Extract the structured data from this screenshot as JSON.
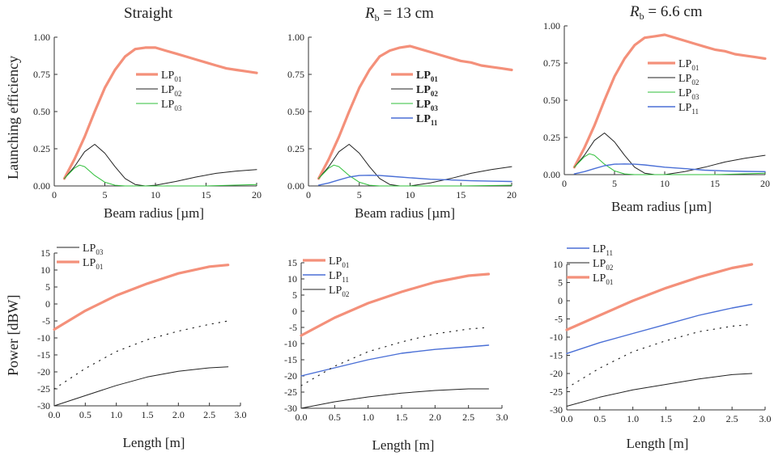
{
  "figure": {
    "ylabel_top": "Launching efficiency",
    "ylabel_bottom": "Power [dBW]",
    "xlabel_top": "Beam radius [µm]",
    "xlabel_bottom": "Length [m]"
  },
  "colors": {
    "lp01": "#f4907a",
    "lp02": "#222222",
    "lp03": "#2fbf3a",
    "lp11": "#4a6fd6",
    "dotted": "#222222"
  },
  "chart_data": [
    {
      "type": "line",
      "title": "Straight",
      "title_var": "",
      "title_sub": "",
      "title_rest": "",
      "xlabel": "Beam radius [µm]",
      "ylabel": "Launching efficiency",
      "xlim": [
        0,
        20
      ],
      "ylim": [
        0,
        1.0
      ],
      "xticks": [
        0,
        5,
        10,
        15,
        20
      ],
      "yticks": [
        "0.00",
        "0.25",
        "0.50",
        "0.75",
        "1.00"
      ],
      "legend": "right",
      "series": [
        {
          "name": "LP",
          "sub": "01",
          "style": "lp01",
          "x": [
            1,
            2,
            3,
            4,
            5,
            6,
            7,
            8,
            9,
            10,
            11,
            12,
            13,
            14,
            15,
            16,
            17,
            18,
            19,
            20
          ],
          "y": [
            0.05,
            0.18,
            0.33,
            0.5,
            0.66,
            0.78,
            0.87,
            0.92,
            0.93,
            0.93,
            0.91,
            0.89,
            0.87,
            0.85,
            0.83,
            0.81,
            0.79,
            0.78,
            0.77,
            0.76
          ]
        },
        {
          "name": "LP",
          "sub": "02",
          "style": "lp02",
          "x": [
            1,
            2,
            3,
            4,
            5,
            6,
            7,
            8,
            9,
            10,
            12,
            14,
            16,
            18,
            20
          ],
          "y": [
            0.05,
            0.13,
            0.23,
            0.28,
            0.22,
            0.13,
            0.05,
            0.01,
            0.0,
            0.005,
            0.03,
            0.06,
            0.085,
            0.1,
            0.11
          ]
        },
        {
          "name": "LP",
          "sub": "03",
          "style": "lp03",
          "x": [
            1,
            2,
            2.5,
            3,
            4,
            5,
            6,
            7,
            10,
            15,
            20
          ],
          "y": [
            0.05,
            0.12,
            0.14,
            0.13,
            0.07,
            0.025,
            0.005,
            0.0,
            0.0,
            0.0,
            0.01
          ]
        }
      ]
    },
    {
      "type": "line",
      "title": "",
      "title_var": "R",
      "title_sub": "b",
      "title_rest": " = 13 cm",
      "xlabel": "Beam radius [µm]",
      "ylabel": "Launching efficiency",
      "xlim": [
        0,
        20
      ],
      "ylim": [
        0,
        1.0
      ],
      "xticks": [
        0,
        5,
        10,
        15,
        20
      ],
      "yticks": [
        "0.00",
        "0.25",
        "0.50",
        "0.75",
        "1.00"
      ],
      "legend": "right",
      "series": [
        {
          "name": "LP",
          "sub": "01",
          "style": "lp01",
          "x": [
            1,
            2,
            3,
            4,
            5,
            6,
            7,
            8,
            9,
            10,
            11,
            12,
            13,
            14,
            15,
            16,
            17,
            18,
            19,
            20
          ],
          "y": [
            0.05,
            0.18,
            0.33,
            0.5,
            0.66,
            0.78,
            0.87,
            0.91,
            0.93,
            0.94,
            0.92,
            0.9,
            0.88,
            0.86,
            0.84,
            0.83,
            0.81,
            0.8,
            0.79,
            0.78
          ]
        },
        {
          "name": "LP",
          "sub": "02",
          "style": "lp02",
          "x": [
            1,
            2,
            3,
            4,
            5,
            6,
            7,
            8,
            9,
            10,
            12,
            14,
            16,
            18,
            20
          ],
          "y": [
            0.05,
            0.13,
            0.23,
            0.28,
            0.22,
            0.13,
            0.05,
            0.01,
            0.0,
            0.0,
            0.02,
            0.05,
            0.085,
            0.11,
            0.13
          ]
        },
        {
          "name": "LP",
          "sub": "03",
          "style": "lp03",
          "x": [
            1,
            2,
            2.5,
            3,
            4,
            5,
            6,
            7,
            10,
            15,
            20
          ],
          "y": [
            0.05,
            0.12,
            0.14,
            0.13,
            0.07,
            0.025,
            0.005,
            0.0,
            0.0,
            0.0,
            0.005
          ]
        },
        {
          "name": "LP",
          "sub": "11",
          "style": "lp11",
          "x": [
            1,
            2,
            3,
            4,
            5,
            6,
            7,
            8,
            10,
            12,
            14,
            16,
            18,
            20
          ],
          "y": [
            0.005,
            0.02,
            0.04,
            0.06,
            0.07,
            0.072,
            0.07,
            0.065,
            0.055,
            0.045,
            0.04,
            0.035,
            0.032,
            0.03
          ]
        }
      ]
    },
    {
      "type": "line",
      "title": "",
      "title_var": "R",
      "title_sub": "b",
      "title_rest": " = 6.6 cm",
      "xlabel": "Beam radius [µm]",
      "ylabel": "Launching efficiency",
      "xlim": [
        0,
        20
      ],
      "ylim": [
        0,
        1.0
      ],
      "xticks": [
        0,
        5,
        10,
        15,
        20
      ],
      "yticks": [
        "0.00",
        "0.25",
        "0.50",
        "0.75",
        "1.00"
      ],
      "legend": "right",
      "series": [
        {
          "name": "LP",
          "sub": "01",
          "style": "lp01",
          "x": [
            1,
            2,
            3,
            4,
            5,
            6,
            7,
            8,
            9,
            10,
            11,
            12,
            13,
            14,
            15,
            16,
            17,
            18,
            19,
            20
          ],
          "y": [
            0.05,
            0.18,
            0.33,
            0.5,
            0.66,
            0.78,
            0.87,
            0.92,
            0.93,
            0.94,
            0.92,
            0.9,
            0.88,
            0.86,
            0.84,
            0.83,
            0.81,
            0.8,
            0.79,
            0.78
          ]
        },
        {
          "name": "LP",
          "sub": "02",
          "style": "lp02",
          "x": [
            1,
            2,
            3,
            4,
            5,
            6,
            7,
            8,
            9,
            10,
            12,
            14,
            16,
            18,
            20
          ],
          "y": [
            0.05,
            0.13,
            0.23,
            0.28,
            0.22,
            0.13,
            0.05,
            0.01,
            0.0,
            0.0,
            0.02,
            0.05,
            0.085,
            0.11,
            0.13
          ]
        },
        {
          "name": "LP",
          "sub": "03",
          "style": "lp03",
          "x": [
            1,
            2,
            2.5,
            3,
            4,
            5,
            6,
            7,
            10,
            15,
            20
          ],
          "y": [
            0.05,
            0.12,
            0.14,
            0.13,
            0.07,
            0.025,
            0.005,
            0.0,
            0.0,
            0.0,
            0.01
          ]
        },
        {
          "name": "LP",
          "sub": "11",
          "style": "lp11",
          "x": [
            1,
            2,
            3,
            4,
            5,
            6,
            7,
            8,
            10,
            12,
            14,
            16,
            18,
            20
          ],
          "y": [
            0.005,
            0.02,
            0.04,
            0.06,
            0.07,
            0.072,
            0.07,
            0.065,
            0.05,
            0.04,
            0.03,
            0.025,
            0.022,
            0.02
          ]
        }
      ]
    },
    {
      "type": "line",
      "title": "",
      "title_var": "",
      "title_sub": "",
      "title_rest": "",
      "xlabel": "Length [m]",
      "ylabel": "Power [dBW]",
      "xlim": [
        0,
        3.0
      ],
      "ylim": [
        -30,
        15
      ],
      "xticks": [
        "0.0",
        "0.5",
        "1.0",
        "1.5",
        "2.0",
        "2.5",
        "3.0"
      ],
      "yticks": [
        "-30",
        "-25",
        "-20",
        "-15",
        "-10",
        "-5",
        "0",
        "5",
        "10",
        "15"
      ],
      "legend": "top-left",
      "series": [
        {
          "name": "LP",
          "sub": "03",
          "style": "lp02",
          "x": [
            0,
            0.5,
            1.0,
            1.5,
            2.0,
            2.5,
            2.8
          ],
          "y": [
            -30,
            -27,
            -24,
            -21.5,
            -19.8,
            -18.8,
            -18.5
          ]
        },
        {
          "name": "LP",
          "sub": "01",
          "style": "lp01",
          "x": [
            0,
            0.5,
            1.0,
            1.5,
            2.0,
            2.5,
            2.8
          ],
          "y": [
            -7.5,
            -2,
            2.5,
            6,
            9,
            11,
            11.5
          ]
        },
        {
          "name": "",
          "sub": "",
          "style": "dotted",
          "x": [
            0,
            0.5,
            1.0,
            1.5,
            2.0,
            2.5,
            2.8
          ],
          "y": [
            -25,
            -19,
            -14,
            -10.5,
            -8,
            -6,
            -5
          ]
        }
      ]
    },
    {
      "type": "line",
      "title": "",
      "title_var": "",
      "title_sub": "",
      "title_rest": "",
      "xlabel": "Length [m]",
      "ylabel": "Power [dBW]",
      "xlim": [
        0,
        3.0
      ],
      "ylim": [
        -30,
        15
      ],
      "xticks": [
        "0.0",
        "0.5",
        "1.0",
        "1.5",
        "2.0",
        "2.5",
        "3.0"
      ],
      "yticks": [
        "-30",
        "-25",
        "-20",
        "-15",
        "-10",
        "-5",
        "0",
        "5",
        "10",
        "15"
      ],
      "legend": "top-left",
      "series": [
        {
          "name": "LP",
          "sub": "01",
          "style": "lp01",
          "x": [
            0,
            0.5,
            1.0,
            1.5,
            2.0,
            2.5,
            2.8
          ],
          "y": [
            -7.5,
            -2,
            2.5,
            6,
            9,
            11,
            11.5
          ]
        },
        {
          "name": "LP",
          "sub": "11",
          "style": "lp11",
          "x": [
            0,
            0.5,
            1.0,
            1.5,
            2.0,
            2.5,
            2.8
          ],
          "y": [
            -20,
            -17.5,
            -15,
            -13,
            -11.8,
            -11,
            -10.5
          ]
        },
        {
          "name": "LP",
          "sub": "02",
          "style": "lp02",
          "x": [
            0,
            0.5,
            1.0,
            1.5,
            2.0,
            2.5,
            2.8
          ],
          "y": [
            -30,
            -28,
            -26.5,
            -25.3,
            -24.5,
            -24,
            -24
          ]
        },
        {
          "name": "",
          "sub": "",
          "style": "dotted",
          "x": [
            0,
            0.5,
            1.0,
            1.5,
            2.0,
            2.5,
            2.8
          ],
          "y": [
            -23,
            -17,
            -12.5,
            -9.5,
            -7,
            -5.5,
            -5
          ]
        }
      ]
    },
    {
      "type": "line",
      "title": "",
      "title_var": "",
      "title_sub": "",
      "title_rest": "",
      "xlabel": "Length [m]",
      "ylabel": "Power [dBW]",
      "xlim": [
        0,
        3.0
      ],
      "ylim": [
        -30,
        10
      ],
      "xticks": [
        "0.0",
        "0.5",
        "1.0",
        "1.5",
        "2.0",
        "2.5",
        "3.0"
      ],
      "yticks": [
        "-30",
        "-25",
        "-20",
        "-15",
        "-10",
        "-5",
        "0",
        "5",
        "10"
      ],
      "legend": "top-left",
      "series": [
        {
          "name": "LP",
          "sub": "11",
          "style": "lp11",
          "x": [
            0,
            0.5,
            1.0,
            1.5,
            2.0,
            2.5,
            2.8
          ],
          "y": [
            -14.5,
            -11.5,
            -9,
            -6.5,
            -4,
            -2,
            -1
          ]
        },
        {
          "name": "LP",
          "sub": "02",
          "style": "lp02",
          "x": [
            0,
            0.5,
            1.0,
            1.5,
            2.0,
            2.5,
            2.8
          ],
          "y": [
            -29,
            -26.5,
            -24.5,
            -23,
            -21.5,
            -20.3,
            -20
          ]
        },
        {
          "name": "LP",
          "sub": "01",
          "style": "lp01",
          "x": [
            0,
            0.5,
            1.0,
            1.5,
            2.0,
            2.5,
            2.8
          ],
          "y": [
            -8,
            -4,
            0,
            3.5,
            6.5,
            9,
            10
          ]
        },
        {
          "name": "",
          "sub": "",
          "style": "dotted",
          "x": [
            0,
            0.5,
            1.0,
            1.5,
            2.0,
            2.5,
            2.8
          ],
          "y": [
            -24,
            -18.5,
            -14,
            -11,
            -8.5,
            -7,
            -6.5
          ]
        }
      ]
    }
  ]
}
